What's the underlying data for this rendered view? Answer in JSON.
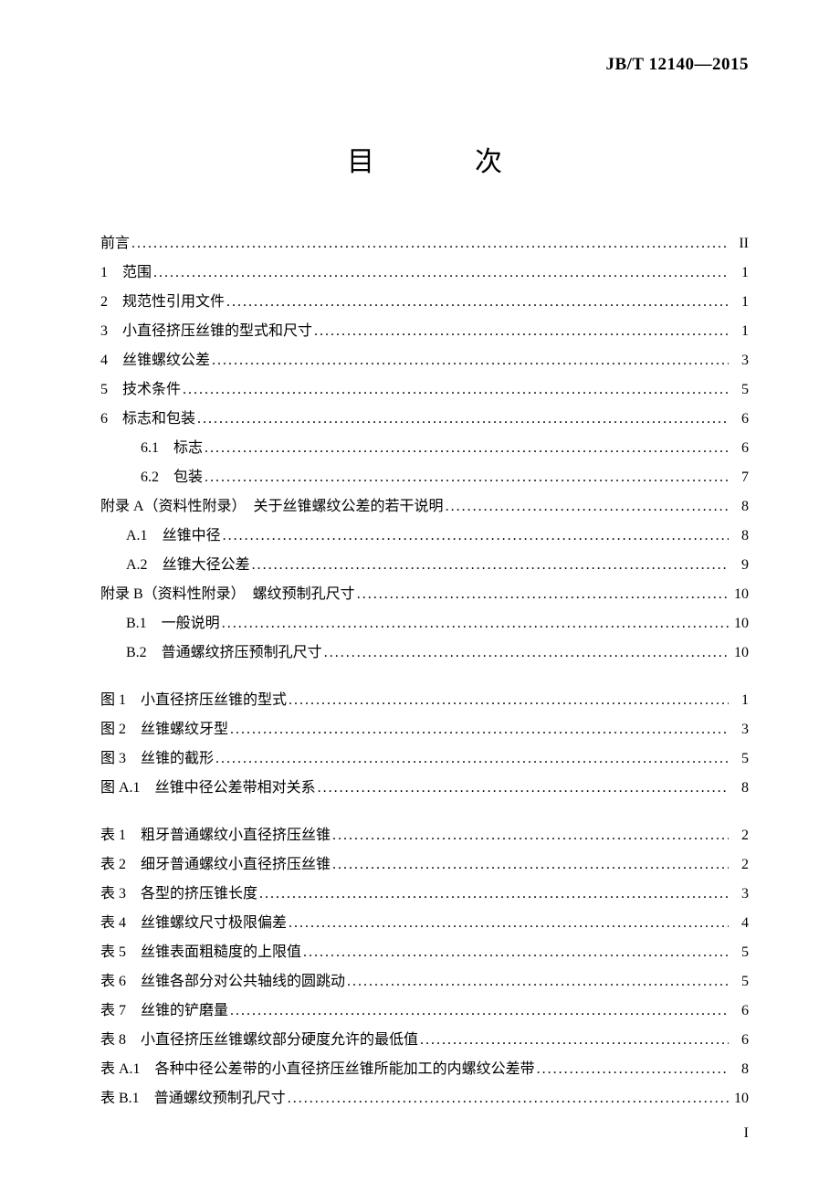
{
  "standard_code": "JB/T 12140—2015",
  "title": "目　次",
  "page_number": "I",
  "sections": [
    {
      "num": "",
      "label": "前言",
      "page": "II",
      "indent": ""
    },
    {
      "num": "1",
      "label": "　范围",
      "page": "1",
      "indent": ""
    },
    {
      "num": "2",
      "label": "　规范性引用文件",
      "page": "1",
      "indent": ""
    },
    {
      "num": "3",
      "label": "　小直径挤压丝锥的型式和尺寸",
      "page": "1",
      "indent": ""
    },
    {
      "num": "4",
      "label": "　丝锥螺纹公差",
      "page": "3",
      "indent": ""
    },
    {
      "num": "5",
      "label": "　技术条件",
      "page": "5",
      "indent": ""
    },
    {
      "num": "6",
      "label": "　标志和包装",
      "page": "6",
      "indent": ""
    },
    {
      "num": "6.1",
      "label": "　标志",
      "page": "6",
      "indent": "indent-1"
    },
    {
      "num": "6.2",
      "label": "　包装",
      "page": "7",
      "indent": "indent-1"
    },
    {
      "num": "",
      "label": "附录 A（资料性附录）　关于丝锥螺纹公差的若干说明",
      "page": "8",
      "indent": ""
    },
    {
      "num": "A.1",
      "label": "　丝锥中径",
      "page": "8",
      "indent": "indent-a"
    },
    {
      "num": "A.2",
      "label": "　丝锥大径公差",
      "page": "9",
      "indent": "indent-a"
    },
    {
      "num": "",
      "label": "附录 B（资料性附录）　螺纹预制孔尺寸",
      "page": "10",
      "indent": ""
    },
    {
      "num": "B.1",
      "label": "　一般说明",
      "page": "10",
      "indent": "indent-a"
    },
    {
      "num": "B.2",
      "label": "　普通螺纹挤压预制孔尺寸",
      "page": "10",
      "indent": "indent-a"
    }
  ],
  "figures": [
    {
      "num": "图 1",
      "label": "　小直径挤压丝锥的型式",
      "page": "1"
    },
    {
      "num": "图 2",
      "label": "　丝锥螺纹牙型",
      "page": "3"
    },
    {
      "num": "图 3",
      "label": "　丝锥的截形",
      "page": "5"
    },
    {
      "num": "图 A.1",
      "label": "　丝锥中径公差带相对关系",
      "page": "8"
    }
  ],
  "tables": [
    {
      "num": "表 1",
      "label": "　粗牙普通螺纹小直径挤压丝锥",
      "page": "2"
    },
    {
      "num": "表 2",
      "label": "　细牙普通螺纹小直径挤压丝锥",
      "page": "2"
    },
    {
      "num": "表 3",
      "label": "　各型的挤压锥长度",
      "page": "3"
    },
    {
      "num": "表 4",
      "label": "　丝锥螺纹尺寸极限偏差",
      "page": "4"
    },
    {
      "num": "表 5",
      "label": "　丝锥表面粗糙度的上限值",
      "page": "5"
    },
    {
      "num": "表 6",
      "label": "　丝锥各部分对公共轴线的圆跳动",
      "page": "5"
    },
    {
      "num": "表 7",
      "label": "　丝锥的铲磨量",
      "page": "6"
    },
    {
      "num": "表 8",
      "label": "　小直径挤压丝锥螺纹部分硬度允许的最低值",
      "page": "6"
    },
    {
      "num": "表 A.1",
      "label": "　各种中径公差带的小直径挤压丝锥所能加工的内螺纹公差带",
      "page": "8"
    },
    {
      "num": "表 B.1",
      "label": "　普通螺纹预制孔尺寸",
      "page": "10"
    }
  ]
}
